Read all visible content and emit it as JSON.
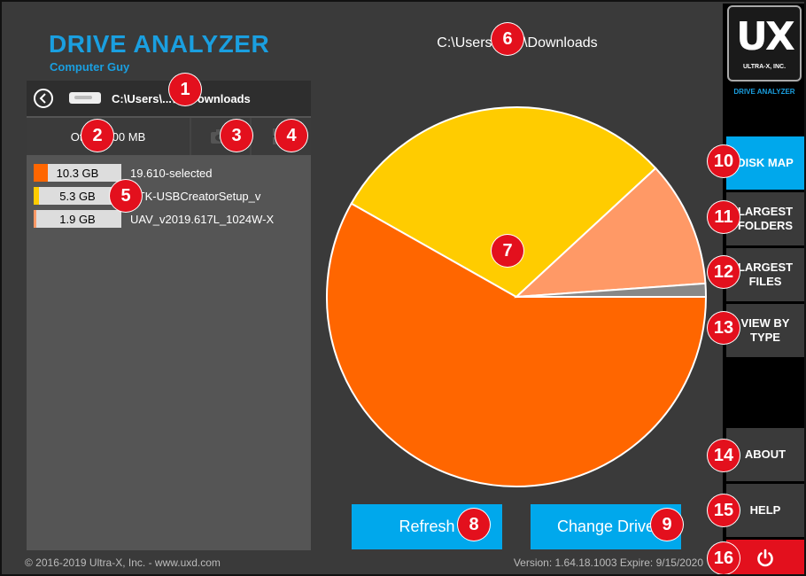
{
  "header": {
    "title": "DRIVE ANALYZER",
    "subtitle": "Computer Guy"
  },
  "left_panel": {
    "path": "C:\\Users\\...\\sr\\Downloads",
    "other_label": "Other: 200 MB",
    "items": [
      {
        "size": "10.3 GB",
        "name": "19.610-selected",
        "color": "#ff6600",
        "fill": 0.16
      },
      {
        "size": "5.3 GB",
        "name": "BTK-USBCreatorSetup_v",
        "color": "#ffcc00",
        "fill": 0.06
      },
      {
        "size": "1.9 GB",
        "name": "UAV_v2019.617L_1024W-X",
        "color": "#ff9966",
        "fill": 0.03
      }
    ]
  },
  "main": {
    "path_title": "C:\\Users\\...\\sr\\Downloads",
    "buttons": {
      "refresh": "Refresh",
      "change_drive": "Change Drive"
    }
  },
  "chart_data": {
    "type": "pie",
    "slices": [
      {
        "value": 10.3,
        "color": "#ff6600"
      },
      {
        "value": 5.3,
        "color": "#ffcc00"
      },
      {
        "value": 1.9,
        "color": "#ff9966"
      },
      {
        "value": 0.2,
        "color": "#888888"
      }
    ],
    "colors": {
      "stroke": "#ffffff"
    }
  },
  "footer": {
    "copyright": "© 2016-2019 Ultra-X, Inc. - www.uxd.com",
    "version": "Version: 1.64.18.1003 Expire: 9/15/2020"
  },
  "sidebar": {
    "logo_text": "UX",
    "logo_company": "ULTRA-X, INC.",
    "app_name": "DRIVE ANALYZER",
    "buttons": {
      "disk_map": "DISK MAP",
      "largest_folders": "LARGEST FOLDERS",
      "largest_files": "LARGEST FILES",
      "view_by_type": "VIEW BY TYPE",
      "about": "ABOUT",
      "help": "HELP"
    }
  },
  "badges": [
    "1",
    "2",
    "3",
    "4",
    "5",
    "6",
    "7",
    "8",
    "9",
    "10",
    "11",
    "12",
    "13",
    "14",
    "15",
    "16"
  ],
  "colors": {
    "accent": "#00a8ec",
    "badge": "#e3101d",
    "brand": "#1a9fe0"
  }
}
